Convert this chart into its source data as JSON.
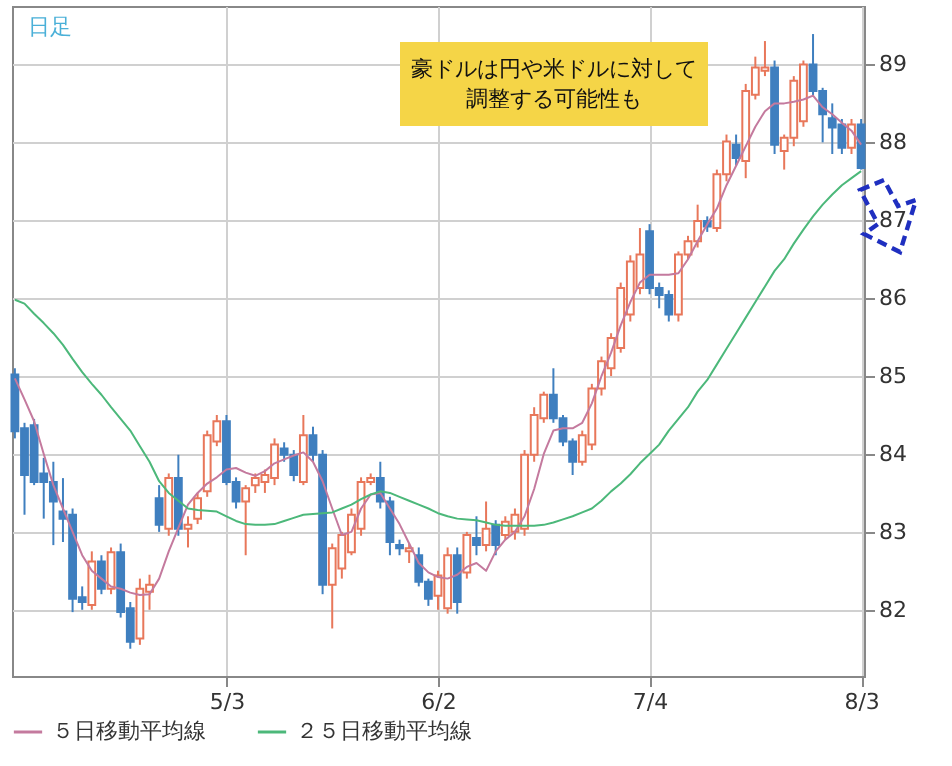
{
  "chart_data": {
    "type": "candlestick",
    "annotations": [
      "日足",
      "豪ドルは円や米ドルに対して",
      "調整する可能性も"
    ],
    "categories": [
      null,
      null,
      null,
      null,
      null,
      null,
      null,
      null,
      null,
      null,
      null,
      null,
      null,
      null,
      null,
      null,
      null,
      null,
      null,
      null,
      null,
      null,
      "5/3",
      null,
      null,
      null,
      null,
      null,
      null,
      null,
      null,
      null,
      null,
      null,
      null,
      null,
      null,
      null,
      null,
      null,
      null,
      null,
      null,
      null,
      "6/2",
      null,
      null,
      null,
      null,
      null,
      null,
      null,
      null,
      null,
      null,
      null,
      null,
      null,
      null,
      null,
      null,
      null,
      null,
      null,
      null,
      null,
      "7/4",
      null,
      null,
      null,
      null,
      null,
      null,
      null,
      null,
      null,
      null,
      null,
      null,
      null,
      null,
      null,
      null,
      null,
      null,
      null,
      null,
      null,
      "8/3"
    ],
    "ohlc": [
      [
        85.02,
        85.1,
        84.2,
        84.29
      ],
      [
        84.33,
        84.4,
        83.22,
        83.73
      ],
      [
        84.37,
        84.45,
        83.6,
        83.64
      ],
      [
        83.75,
        83.95,
        83.17,
        83.64
      ],
      [
        83.64,
        83.9,
        82.83,
        83.39
      ],
      [
        83.26,
        83.69,
        82.87,
        83.17
      ],
      [
        83.22,
        83.3,
        81.97,
        82.14
      ],
      [
        82.16,
        82.3,
        82.0,
        82.1
      ],
      [
        82.06,
        82.75,
        82.0,
        82.62
      ],
      [
        82.62,
        82.7,
        82.2,
        82.27
      ],
      [
        82.27,
        82.8,
        82.2,
        82.74
      ],
      [
        82.74,
        82.85,
        81.9,
        81.97
      ],
      [
        82.02,
        82.1,
        81.5,
        81.59
      ],
      [
        81.63,
        82.4,
        81.55,
        82.27
      ],
      [
        82.23,
        82.45,
        82.0,
        82.32
      ],
      [
        83.43,
        83.6,
        83.0,
        83.09
      ],
      [
        83.04,
        83.75,
        82.95,
        83.69
      ],
      [
        83.69,
        83.99,
        82.95,
        83.04
      ],
      [
        83.04,
        83.2,
        82.8,
        83.09
      ],
      [
        83.17,
        83.5,
        83.1,
        83.43
      ],
      [
        83.52,
        84.3,
        83.45,
        84.24
      ],
      [
        84.16,
        84.5,
        84.1,
        84.42
      ],
      [
        84.42,
        84.5,
        83.6,
        83.64
      ],
      [
        83.64,
        83.7,
        83.3,
        83.39
      ],
      [
        83.39,
        83.6,
        82.7,
        83.56
      ],
      [
        83.6,
        83.75,
        83.5,
        83.69
      ],
      [
        83.64,
        83.8,
        83.5,
        83.73
      ],
      [
        83.69,
        84.2,
        83.6,
        84.12
      ],
      [
        84.07,
        84.15,
        83.9,
        83.99
      ],
      [
        83.99,
        84.05,
        83.65,
        83.73
      ],
      [
        83.64,
        84.5,
        83.6,
        84.24
      ],
      [
        84.24,
        84.35,
        83.9,
        83.99
      ],
      [
        83.99,
        84.05,
        82.2,
        82.32
      ],
      [
        82.32,
        82.85,
        81.76,
        82.79
      ],
      [
        82.53,
        83.0,
        82.4,
        82.96
      ],
      [
        82.74,
        83.3,
        82.7,
        83.22
      ],
      [
        83.04,
        83.7,
        82.95,
        83.64
      ],
      [
        83.64,
        83.75,
        83.6,
        83.69
      ],
      [
        83.69,
        83.9,
        83.3,
        83.39
      ],
      [
        83.39,
        83.45,
        82.7,
        82.87
      ],
      [
        82.83,
        82.9,
        82.7,
        82.79
      ],
      [
        82.75,
        82.85,
        82.6,
        82.79
      ],
      [
        82.7,
        82.8,
        82.3,
        82.36
      ],
      [
        82.36,
        82.4,
        82.05,
        82.14
      ],
      [
        82.18,
        82.5,
        82.0,
        82.44
      ],
      [
        82.02,
        82.8,
        81.95,
        82.7
      ],
      [
        82.7,
        82.8,
        81.95,
        82.1
      ],
      [
        82.48,
        83.0,
        82.4,
        82.96
      ],
      [
        82.92,
        83.2,
        82.7,
        82.83
      ],
      [
        82.83,
        83.39,
        82.75,
        83.04
      ],
      [
        83.09,
        83.15,
        82.7,
        82.83
      ],
      [
        82.96,
        83.2,
        82.9,
        83.13
      ],
      [
        83.0,
        83.3,
        82.9,
        83.22
      ],
      [
        83.04,
        84.05,
        82.95,
        83.99
      ],
      [
        83.99,
        84.6,
        83.9,
        84.5
      ],
      [
        84.46,
        84.8,
        84.4,
        84.76
      ],
      [
        84.76,
        85.1,
        84.4,
        84.46
      ],
      [
        84.46,
        84.5,
        84.1,
        84.16
      ],
      [
        84.16,
        84.2,
        83.73,
        83.9
      ],
      [
        83.9,
        84.3,
        83.85,
        84.24
      ],
      [
        84.12,
        84.9,
        84.05,
        84.84
      ],
      [
        84.84,
        85.25,
        84.75,
        85.19
      ],
      [
        85.1,
        85.55,
        85.0,
        85.49
      ],
      [
        85.36,
        86.2,
        85.3,
        86.13
      ],
      [
        85.79,
        86.55,
        85.7,
        86.47
      ],
      [
        86.13,
        86.9,
        86.05,
        86.56
      ],
      [
        86.86,
        86.95,
        86.05,
        86.13
      ],
      [
        86.13,
        86.2,
        85.87,
        86.04
      ],
      [
        86.04,
        86.1,
        85.7,
        85.79
      ],
      [
        85.79,
        86.6,
        85.7,
        86.56
      ],
      [
        86.56,
        86.8,
        86.5,
        86.73
      ],
      [
        86.73,
        87.2,
        86.65,
        86.99
      ],
      [
        86.99,
        87.05,
        86.85,
        86.92
      ],
      [
        86.9,
        87.65,
        86.85,
        87.59
      ],
      [
        87.59,
        88.1,
        87.5,
        88.01
      ],
      [
        87.97,
        88.1,
        87.7,
        87.8
      ],
      [
        87.76,
        88.75,
        87.54,
        88.66
      ],
      [
        88.61,
        89.1,
        88.55,
        88.96
      ],
      [
        88.92,
        89.3,
        88.85,
        88.96
      ],
      [
        88.96,
        89.05,
        87.85,
        87.97
      ],
      [
        87.89,
        88.1,
        87.65,
        88.06
      ],
      [
        88.06,
        88.85,
        87.95,
        88.79
      ],
      [
        88.27,
        89.05,
        88.2,
        89.0
      ],
      [
        89.0,
        89.39,
        88.6,
        88.66
      ],
      [
        88.66,
        88.7,
        88.0,
        88.36
      ],
      [
        88.31,
        88.5,
        87.85,
        88.19
      ],
      [
        88.23,
        88.3,
        87.85,
        87.93
      ],
      [
        87.93,
        88.3,
        87.85,
        88.23
      ],
      [
        88.23,
        88.3,
        87.65,
        87.67
      ]
    ],
    "colors": [
      "#3f7fbf",
      "#3f7fbf",
      "#3f7fbf",
      "#3f7fbf",
      "#3f7fbf",
      "#3f7fbf",
      "#3f7fbf",
      "#3f7fbf",
      "#e8775a",
      "#3f7fbf",
      "#e8775a",
      "#3f7fbf",
      "#3f7fbf",
      "#e8775a",
      "#e8775a",
      "#3f7fbf",
      "#e8775a",
      "#3f7fbf",
      "#e8775a",
      "#e8775a",
      "#e8775a",
      "#e8775a",
      "#3f7fbf",
      "#3f7fbf",
      "#e8775a",
      "#e8775a",
      "#e8775a",
      "#e8775a",
      "#3f7fbf",
      "#3f7fbf",
      "#e8775a",
      "#3f7fbf",
      "#3f7fbf",
      "#e8775a",
      "#e8775a",
      "#e8775a",
      "#e8775a",
      "#e8775a",
      "#3f7fbf",
      "#3f7fbf",
      "#3f7fbf",
      "#e8775a",
      "#3f7fbf",
      "#3f7fbf",
      "#e8775a",
      "#e8775a",
      "#3f7fbf",
      "#e8775a",
      "#3f7fbf",
      "#e8775a",
      "#3f7fbf",
      "#e8775a",
      "#e8775a",
      "#e8775a",
      "#e8775a",
      "#e8775a",
      "#3f7fbf",
      "#3f7fbf",
      "#3f7fbf",
      "#e8775a",
      "#e8775a",
      "#e8775a",
      "#e8775a",
      "#e8775a",
      "#e8775a",
      "#e8775a",
      "#3f7fbf",
      "#3f7fbf",
      "#3f7fbf",
      "#e8775a",
      "#e8775a",
      "#e8775a",
      "#3f7fbf",
      "#e8775a",
      "#e8775a",
      "#3f7fbf",
      "#e8775a",
      "#e8775a",
      "#e8775a",
      "#3f7fbf",
      "#e8775a",
      "#e8775a",
      "#e8775a",
      "#3f7fbf",
      "#3f7fbf",
      "#3f7fbf",
      "#3f7fbf",
      "#e8775a",
      "#3f7fbf"
    ],
    "series": [
      {
        "name": "５日移動平均線",
        "type": "line",
        "color": "#c47a9e",
        "values": [
          84.97,
          84.7,
          84.42,
          84.0,
          83.6,
          83.3,
          83.0,
          82.7,
          82.5,
          82.4,
          82.3,
          82.27,
          82.22,
          82.19,
          82.2,
          82.4,
          82.75,
          83.05,
          83.35,
          83.5,
          83.62,
          83.7,
          83.8,
          83.82,
          83.76,
          83.72,
          83.78,
          83.88,
          83.93,
          83.98,
          84.02,
          83.9,
          83.65,
          83.3,
          82.96,
          83.0,
          83.3,
          83.48,
          83.5,
          83.3,
          83.1,
          82.85,
          82.6,
          82.48,
          82.42,
          82.4,
          82.45,
          82.55,
          82.6,
          82.5,
          82.75,
          82.9,
          83.0,
          83.2,
          83.55,
          84.0,
          84.3,
          84.33,
          84.33,
          84.4,
          84.65,
          85.0,
          85.3,
          85.65,
          85.95,
          86.2,
          86.3,
          86.3,
          86.3,
          86.32,
          86.5,
          86.73,
          86.95,
          87.15,
          87.45,
          87.7,
          87.95,
          88.2,
          88.4,
          88.5,
          88.5,
          88.52,
          88.55,
          88.6,
          88.45,
          88.36,
          88.25,
          88.15,
          87.97
        ]
      },
      {
        "name": "２５日移動平均線",
        "type": "line",
        "color": "#4cb87a",
        "values": [
          85.98,
          85.93,
          85.8,
          85.68,
          85.55,
          85.4,
          85.22,
          85.05,
          84.9,
          84.76,
          84.6,
          84.45,
          84.3,
          84.1,
          83.9,
          83.65,
          83.5,
          83.4,
          83.3,
          83.28,
          83.27,
          83.26,
          83.2,
          83.14,
          83.1,
          83.09,
          83.09,
          83.1,
          83.14,
          83.18,
          83.22,
          83.23,
          83.24,
          83.25,
          83.3,
          83.35,
          83.42,
          83.48,
          83.52,
          83.5,
          83.45,
          83.4,
          83.35,
          83.3,
          83.24,
          83.2,
          83.17,
          83.16,
          83.15,
          83.12,
          83.09,
          83.08,
          83.08,
          83.08,
          83.08,
          83.09,
          83.12,
          83.16,
          83.2,
          83.25,
          83.3,
          83.4,
          83.52,
          83.62,
          83.74,
          83.88,
          84.0,
          84.12,
          84.3,
          84.45,
          84.6,
          84.8,
          84.95,
          85.15,
          85.35,
          85.55,
          85.75,
          85.95,
          86.15,
          86.35,
          86.5,
          86.7,
          86.88,
          87.05,
          87.2,
          87.33,
          87.45,
          87.54,
          87.63
        ]
      }
    ],
    "ylim": [
      81.15,
      89.75
    ],
    "yticks": [
      82,
      83,
      84,
      85,
      86,
      87,
      88,
      89
    ],
    "grid": true,
    "legend": "bottom"
  }
}
